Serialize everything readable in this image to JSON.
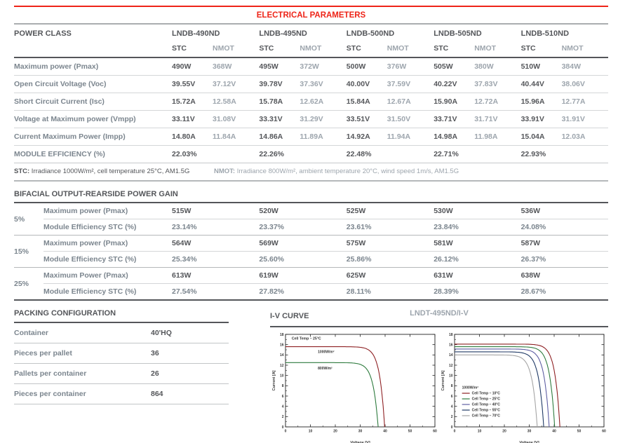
{
  "page": {
    "title": "ELECTRICAL PARAMETERS"
  },
  "colors": {
    "accent_red": "#ee2418",
    "dark_text": "#54565a",
    "label_gray_blue": "#7b858e",
    "nmot_gray": "#9da5ad"
  },
  "electrical_table": {
    "header_label": "POWER CLASS",
    "models": [
      "LNDB-490ND",
      "LNDB-495ND",
      "LNDB-500ND",
      "LNDB-505ND",
      "LNDB-510ND"
    ],
    "subcols": [
      "STC",
      "NMOT"
    ],
    "rows": [
      {
        "label": "Maximum power (Pmax)",
        "values": [
          [
            "490W",
            "368W"
          ],
          [
            "495W",
            "372W"
          ],
          [
            "500W",
            "376W"
          ],
          [
            "505W",
            "380W"
          ],
          [
            "510W",
            "384W"
          ]
        ]
      },
      {
        "label": "Open Circuit Voltage (Voc)",
        "values": [
          [
            "39.55V",
            "37.12V"
          ],
          [
            "39.78V",
            "37.36V"
          ],
          [
            "40.00V",
            "37.59V"
          ],
          [
            "40.22V",
            "37.83V"
          ],
          [
            "40.44V",
            "38.06V"
          ]
        ]
      },
      {
        "label": "Short Circuit Current (Isc)",
        "values": [
          [
            "15.72A",
            "12.58A"
          ],
          [
            "15.78A",
            "12.62A"
          ],
          [
            "15.84A",
            "12.67A"
          ],
          [
            "15.90A",
            "12.72A"
          ],
          [
            "15.96A",
            "12.77A"
          ]
        ]
      },
      {
        "label": "Voltage at Maximum power (Vmpp)",
        "values": [
          [
            "33.11V",
            "31.08V"
          ],
          [
            "33.31V",
            "31.29V"
          ],
          [
            "33.51V",
            "31.50V"
          ],
          [
            "33.71V",
            "31.71V"
          ],
          [
            "33.91V",
            "31.91V"
          ]
        ]
      },
      {
        "label": "Current Maximum Power (Impp)",
        "values": [
          [
            "14.80A",
            "11.84A"
          ],
          [
            "14.86A",
            "11.89A"
          ],
          [
            "14.92A",
            "11.94A"
          ],
          [
            "14.98A",
            "11.98A"
          ],
          [
            "15.04A",
            "12.03A"
          ]
        ]
      }
    ],
    "efficiency_row": {
      "label": "MODULE EFFICIENCY (%)",
      "values": [
        "22.03%",
        "22.26%",
        "22.48%",
        "22.71%",
        "22.93%"
      ]
    },
    "notes": {
      "stc_label": "STC:",
      "stc_text": " Irradiance 1000W/m², cell temperature 25°C, AM1.5G",
      "nmot_label": "NMOT:",
      "nmot_text": " Irradiance 800W/m², ambient temperature 20°C, wind speed 1m/s, AM1.5G"
    }
  },
  "bifacial": {
    "title": "BIFACIAL OUTPUT-REARSIDE POWER GAIN",
    "groups": [
      {
        "gain": "5%",
        "rows": [
          {
            "label": "Maximum power (Pmax)",
            "values": [
              "515W",
              "520W",
              "525W",
              "530W",
              "536W"
            ]
          },
          {
            "label": "Module Efficiency STC (%)",
            "values": [
              "23.14%",
              "23.37%",
              "23.61%",
              "23.84%",
              "24.08%"
            ]
          }
        ]
      },
      {
        "gain": "15%",
        "rows": [
          {
            "label": "Maximum power (Pmax)",
            "values": [
              "564W",
              "569W",
              "575W",
              "581W",
              "587W"
            ]
          },
          {
            "label": "Module Efficiency STC (%)",
            "values": [
              "25.34%",
              "25.60%",
              "25.86%",
              "26.12%",
              "26.37%"
            ]
          }
        ]
      },
      {
        "gain": "25%",
        "rows": [
          {
            "label": "Maximum Power (Pmax)",
            "values": [
              "613W",
              "619W",
              "625W",
              "631W",
              "638W"
            ]
          },
          {
            "label": "Module Efficiency STC (%)",
            "values": [
              "27.54%",
              "27.82%",
              "28.11%",
              "28.39%",
              "28.67%"
            ]
          }
        ]
      }
    ]
  },
  "packing": {
    "title": "PACKING CONFIGURATION",
    "rows": [
      {
        "label": "Container",
        "value": "40'HQ"
      },
      {
        "label": "Pieces per pallet",
        "value": "36"
      },
      {
        "label": "Pallets per container",
        "value": "26"
      },
      {
        "label": "Pieces per container",
        "value": "864"
      }
    ]
  },
  "iv": {
    "title": "I-V CURVE",
    "subtitle": "LNDT-495ND/I-V"
  },
  "chart_data": [
    {
      "type": "line",
      "title": "I-V CURVE",
      "xlabel": "Voltage [V]",
      "ylabel": "Current [A]",
      "xlim": [
        0,
        60
      ],
      "ylim": [
        0,
        18
      ],
      "xticks": [
        0,
        10,
        20,
        30,
        40,
        50,
        60
      ],
      "yticks": [
        0,
        2,
        4,
        6,
        8,
        10,
        12,
        14,
        16,
        18
      ],
      "grid": false,
      "annotation": {
        "text": "Cell Temp – 25°C",
        "x": 2.5,
        "y": 17.0
      },
      "series": [
        {
          "name": "1000W/m²",
          "color": "#8e2023",
          "isc": 15.6,
          "voc": 39.8,
          "label_pos": [
            13,
            14.4
          ]
        },
        {
          "name": "800W/m²",
          "color": "#2e7b3e",
          "isc": 12.5,
          "voc": 37.2,
          "label_pos": [
            13,
            11.2
          ]
        }
      ]
    },
    {
      "type": "line",
      "title": "LNDT-495ND/I-V",
      "xlabel": "Voltage [V]",
      "ylabel": "Current [A]",
      "xlim": [
        0,
        60
      ],
      "ylim": [
        0,
        18
      ],
      "xticks": [
        0,
        10,
        20,
        30,
        40,
        50,
        60
      ],
      "yticks": [
        0,
        2,
        4,
        6,
        8,
        10,
        12,
        14,
        16,
        18
      ],
      "grid": false,
      "legend": {
        "title": "1000W/m²",
        "position": "lower-left"
      },
      "series": [
        {
          "name": "Cell Temp – 10°C",
          "color": "#8e2023",
          "isc": 16.1,
          "voc": 42.3
        },
        {
          "name": "Cell Temp – 25°C",
          "color": "#2e7b3e",
          "isc": 15.6,
          "voc": 40.2
        },
        {
          "name": "Cell Temp – 40°C",
          "color": "#5f5fa3",
          "isc": 15.15,
          "voc": 38.0
        },
        {
          "name": "Cell Temp – 55°C",
          "color": "#203a66",
          "isc": 14.6,
          "voc": 35.8
        },
        {
          "name": "Cell Temp – 70°C",
          "color": "#a5a5a5",
          "isc": 14.0,
          "voc": 33.2
        }
      ]
    }
  ]
}
